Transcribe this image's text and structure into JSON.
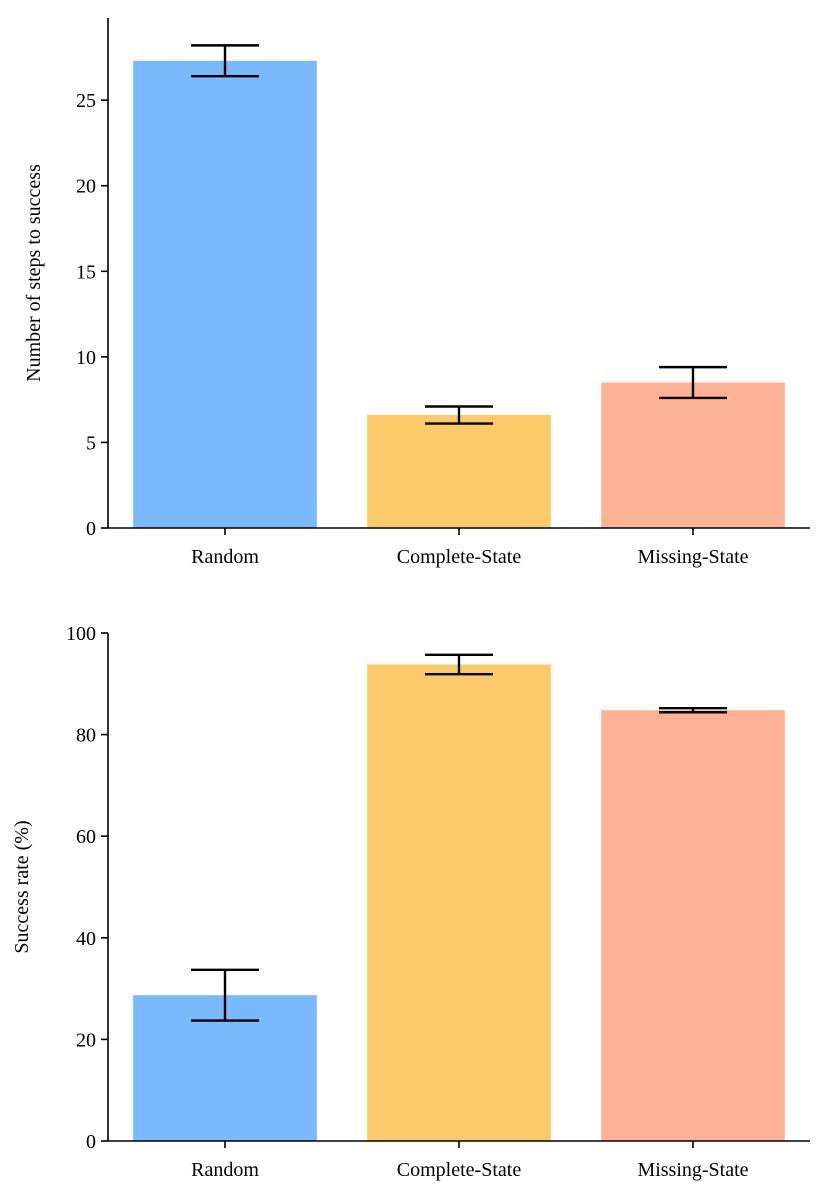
{
  "chart_data": [
    {
      "type": "bar",
      "title": "",
      "xlabel": "",
      "ylabel": "Number of steps to success",
      "categories": [
        "Random",
        "Complete-State",
        "Missing-State"
      ],
      "values": [
        27.3,
        6.6,
        8.5
      ],
      "errors": [
        0.9,
        0.5,
        0.9
      ],
      "colors": [
        "#7ab9fc",
        "#fdca69",
        "#fdb296"
      ],
      "ylim": [
        0,
        29.8
      ],
      "yticks": [
        0,
        5,
        10,
        15,
        20,
        25
      ],
      "grid": false,
      "legend": "none"
    },
    {
      "type": "bar",
      "title": "",
      "xlabel": "",
      "ylabel": "Success rate (%)",
      "categories": [
        "Random",
        "Complete-State",
        "Missing-State"
      ],
      "values": [
        28.7,
        93.8,
        84.8
      ],
      "errors": [
        5.0,
        1.9,
        0.4
      ],
      "colors": [
        "#7ab9fc",
        "#fdca69",
        "#fdb296"
      ],
      "ylim": [
        0,
        100
      ],
      "yticks": [
        0,
        20,
        40,
        60,
        80,
        100
      ],
      "grid": false,
      "legend": "none"
    }
  ]
}
